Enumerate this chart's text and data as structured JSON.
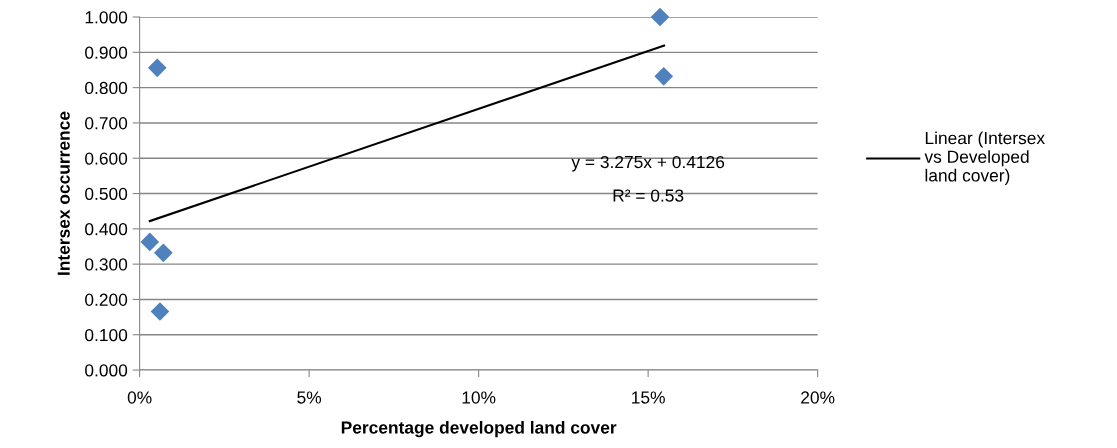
{
  "chart_data": {
    "type": "scatter",
    "xlabel": "Percentage developed land cover",
    "ylabel": "Intersex occurrence",
    "series": [
      {
        "color": "#4f81bd",
        "marker": "diamond",
        "x": [
          0.003,
          0.0052,
          0.007,
          0.006,
          0.1535,
          0.1546
        ],
        "values": [
          0.363,
          0.856,
          0.332,
          0.166,
          1.0,
          0.832
        ]
      },
      {
        "type": "line",
        "name": "Linear (Intersex vs Developed land cover)",
        "color": "#000000",
        "marker": "none",
        "line_style": "solid",
        "x": [
          0.003,
          0.1547
        ],
        "values": [
          0.422,
          0.919
        ]
      }
    ],
    "annotations": [
      "y = 3.275x + 0.4126",
      "R² = 0.53"
    ],
    "xlim": [
      0,
      0.2
    ],
    "xticks": [
      {
        "value": 0,
        "label": "0%"
      },
      {
        "value": 0.05,
        "label": "5%"
      },
      {
        "value": 0.1,
        "label": "10%"
      },
      {
        "value": 0.15,
        "label": "15%"
      },
      {
        "value": 0.2,
        "label": "20%"
      }
    ],
    "ylim": [
      0,
      1.0
    ],
    "yticks": [
      {
        "value": 0,
        "label": "0.000"
      },
      {
        "value": 0.1,
        "label": "0.100"
      },
      {
        "value": 0.2,
        "label": "0.200"
      },
      {
        "value": 0.3,
        "label": "0.300"
      },
      {
        "value": 0.4,
        "label": "0.400"
      },
      {
        "value": 0.5,
        "label": "0.500"
      },
      {
        "value": 0.6,
        "label": "0.600"
      },
      {
        "value": 0.7,
        "label": "0.700"
      },
      {
        "value": 0.8,
        "label": "0.800"
      },
      {
        "value": 0.9,
        "label": "0.900"
      },
      {
        "value": 1.0,
        "label": "1.000"
      }
    ],
    "grid": "y",
    "legend": "right"
  }
}
